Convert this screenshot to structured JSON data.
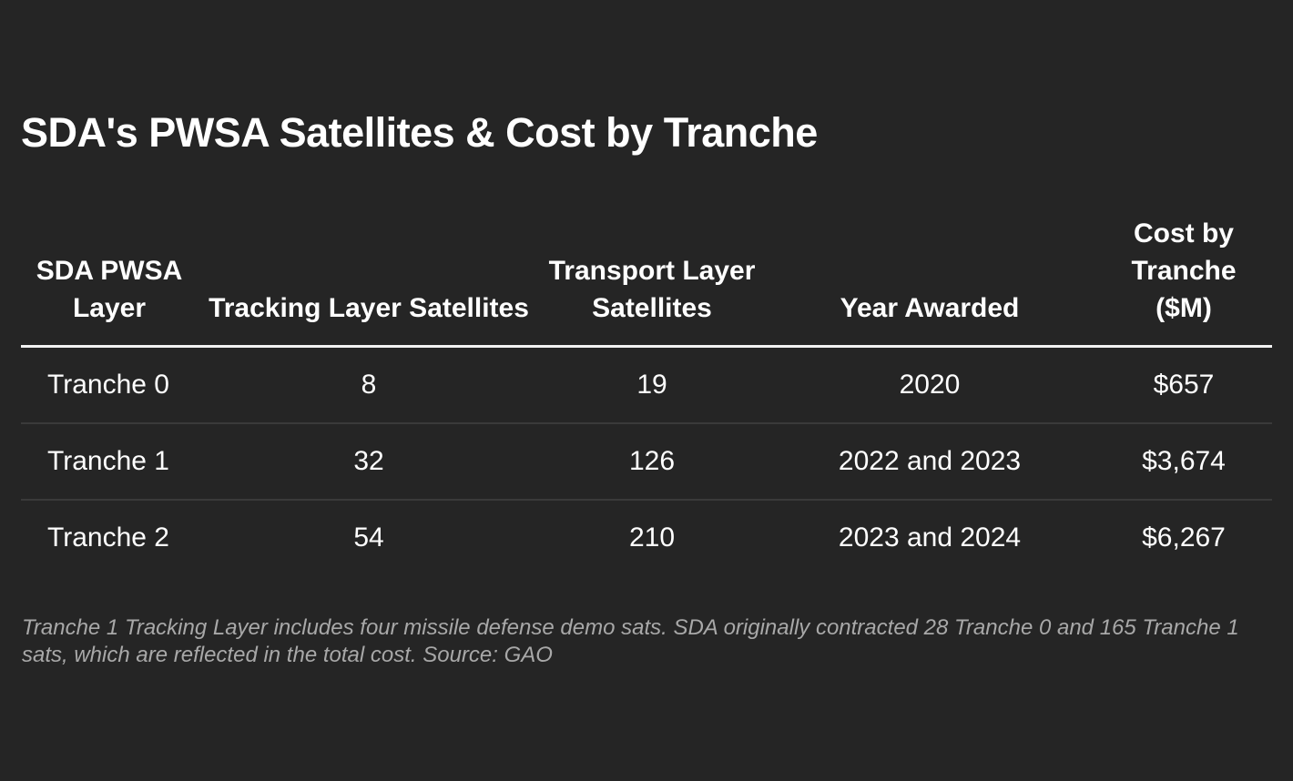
{
  "title": "SDA's PWSA Satellites & Cost by Tranche",
  "chart_data": {
    "type": "table",
    "title": "SDA's PWSA Satellites & Cost by Tranche",
    "columns": [
      "SDA PWSA Layer",
      "Tracking Layer Satellites",
      "Transport Layer Satellites",
      "Year Awarded",
      "Cost by Tranche ($M)"
    ],
    "rows": [
      [
        "Tranche 0",
        "8",
        "19",
        "2020",
        "$657"
      ],
      [
        "Tranche 1",
        "32",
        "126",
        "2022 and 2023",
        "$3,674"
      ],
      [
        "Tranche 2",
        "54",
        "210",
        "2023 and 2024",
        "$6,267"
      ]
    ]
  },
  "footnote": "Tranche 1 Tracking Layer includes four missile defense demo sats. SDA originally contracted 28 Tranche 0 and 165 Tranche 1 sats, which are reflected in the total cost. Source: GAO"
}
